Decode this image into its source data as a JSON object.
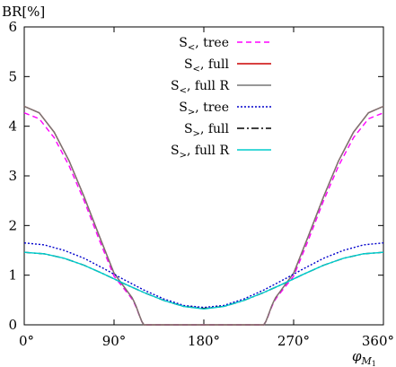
{
  "chart_data": {
    "type": "line",
    "ylabel": "BR[%]",
    "xlabel": "φ",
    "xlabel_sub": "M",
    "xlabel_subsub": "1",
    "xlim": [
      0,
      360
    ],
    "ylim": [
      0,
      6
    ],
    "x_ticks": [
      0,
      90,
      180,
      270,
      360
    ],
    "x_tick_labels": [
      "0°",
      "90°",
      "180°",
      "270°",
      "360°"
    ],
    "y_ticks": [
      0,
      1,
      2,
      3,
      4,
      5,
      6
    ],
    "y_tick_labels": [
      "0",
      "1",
      "2",
      "3",
      "4",
      "5",
      "6"
    ],
    "grid": false,
    "legend_position": "top-center",
    "series": [
      {
        "name": "S<, tree",
        "name_main": "S",
        "name_sub": "<",
        "name_rest": ", tree",
        "color": "#ff00ff",
        "dash": "6,4",
        "x": [
          0,
          15,
          30,
          45,
          60,
          75,
          90,
          105,
          108,
          110,
          112,
          114,
          116,
          118,
          120,
          240,
          242,
          244,
          246,
          248,
          250,
          252,
          255,
          270,
          285,
          300,
          315,
          330,
          345,
          360
        ],
        "y": [
          4.27,
          4.15,
          3.77,
          3.2,
          2.5,
          1.72,
          0.98,
          0.6,
          0.52,
          0.45,
          0.36,
          0.26,
          0.15,
          0.06,
          0.0,
          0.0,
          0.06,
          0.15,
          0.26,
          0.36,
          0.45,
          0.52,
          0.6,
          0.98,
          1.72,
          2.5,
          3.2,
          3.77,
          4.15,
          4.27
        ]
      },
      {
        "name": "S<, full",
        "name_main": "S",
        "name_sub": "<",
        "name_rest": ", full",
        "color": "#cc0000",
        "dash": "",
        "x": [
          0,
          15,
          30,
          45,
          60,
          75,
          90,
          105,
          108,
          110,
          112,
          114,
          116,
          118,
          120,
          240,
          242,
          244,
          246,
          248,
          250,
          252,
          255,
          270,
          285,
          300,
          315,
          330,
          345,
          360
        ],
        "y": [
          4.4,
          4.27,
          3.88,
          3.3,
          2.58,
          1.8,
          1.04,
          0.63,
          0.55,
          0.47,
          0.38,
          0.27,
          0.16,
          0.06,
          0.0,
          0.0,
          0.06,
          0.16,
          0.27,
          0.38,
          0.47,
          0.55,
          0.63,
          1.04,
          1.8,
          2.58,
          3.3,
          3.88,
          4.27,
          4.4
        ]
      },
      {
        "name": "S<, full R",
        "name_main": "S",
        "name_sub": "<",
        "name_rest": ", full R",
        "color": "#777777",
        "dash": "",
        "x": [
          0,
          15,
          30,
          45,
          60,
          75,
          90,
          105,
          108,
          110,
          112,
          114,
          116,
          118,
          120,
          240,
          242,
          244,
          246,
          248,
          250,
          252,
          255,
          270,
          285,
          300,
          315,
          330,
          345,
          360
        ],
        "y": [
          4.4,
          4.27,
          3.88,
          3.3,
          2.58,
          1.8,
          1.04,
          0.63,
          0.55,
          0.47,
          0.38,
          0.27,
          0.16,
          0.06,
          0.0,
          0.0,
          0.06,
          0.16,
          0.27,
          0.38,
          0.47,
          0.55,
          0.63,
          1.04,
          1.8,
          2.58,
          3.3,
          3.88,
          4.27,
          4.4
        ]
      },
      {
        "name": "S>, tree",
        "name_main": "S",
        "name_sub": ">",
        "name_rest": ", tree",
        "color": "#0000cc",
        "dash": "2,2",
        "x": [
          0,
          20,
          40,
          60,
          80,
          100,
          120,
          140,
          160,
          180,
          200,
          220,
          240,
          260,
          280,
          300,
          320,
          340,
          360
        ],
        "y": [
          1.65,
          1.61,
          1.5,
          1.34,
          1.13,
          0.91,
          0.7,
          0.52,
          0.39,
          0.35,
          0.39,
          0.52,
          0.7,
          0.91,
          1.13,
          1.34,
          1.5,
          1.61,
          1.65
        ]
      },
      {
        "name": "S>, full",
        "name_main": "S",
        "name_sub": ">",
        "name_rest": ", full",
        "color": "#000000",
        "dash": "8,3,2,3",
        "x": [
          0,
          20,
          40,
          60,
          80,
          100,
          120,
          140,
          160,
          180,
          200,
          220,
          240,
          260,
          280,
          300,
          320,
          340,
          360
        ],
        "y": [
          1.46,
          1.43,
          1.34,
          1.2,
          1.02,
          0.83,
          0.65,
          0.49,
          0.37,
          0.33,
          0.37,
          0.49,
          0.65,
          0.83,
          1.02,
          1.2,
          1.34,
          1.43,
          1.46
        ]
      },
      {
        "name": "S>, full R",
        "name_main": "S",
        "name_sub": ">",
        "name_rest": ", full R",
        "color": "#00cccc",
        "dash": "",
        "x": [
          0,
          20,
          40,
          60,
          80,
          100,
          120,
          140,
          160,
          180,
          200,
          220,
          240,
          260,
          280,
          300,
          320,
          340,
          360
        ],
        "y": [
          1.46,
          1.43,
          1.34,
          1.2,
          1.02,
          0.83,
          0.65,
          0.49,
          0.37,
          0.32,
          0.37,
          0.49,
          0.65,
          0.83,
          1.02,
          1.2,
          1.34,
          1.43,
          1.46
        ]
      }
    ]
  }
}
